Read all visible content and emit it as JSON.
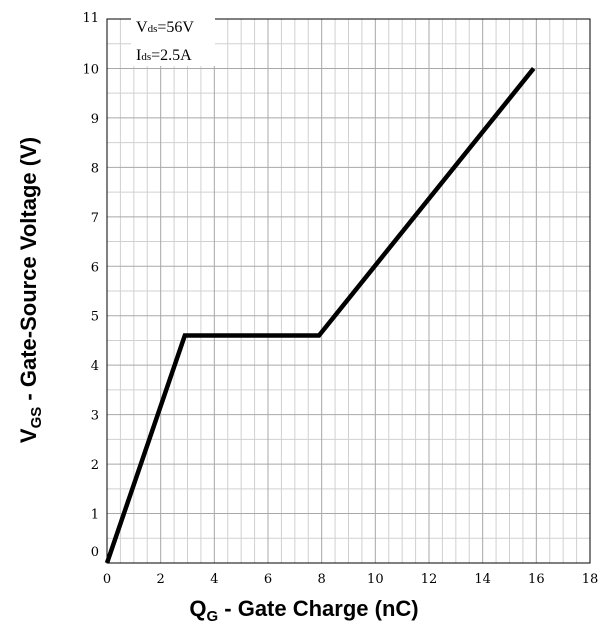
{
  "chart_data": {
    "type": "line",
    "xlabel": {
      "main": "Q",
      "sub": "G",
      "rest": " - Gate Charge (nC)"
    },
    "ylabel": {
      "main": "V",
      "sub": "GS",
      "rest": " - Gate-Source Voltage (V)"
    },
    "xlim": [
      0,
      18
    ],
    "ylim": [
      0,
      11
    ],
    "x_ticks": [
      0,
      2,
      4,
      6,
      8,
      10,
      12,
      14,
      16,
      18
    ],
    "y_ticks": [
      0,
      1,
      2,
      3,
      4,
      5,
      6,
      7,
      8,
      9,
      10,
      11
    ],
    "grid": true,
    "annotations": [
      {
        "main": "V",
        "sub": "ds",
        "rest": "=56V"
      },
      {
        "main": "I",
        "sub": "ds",
        "rest": "=2.5A"
      }
    ],
    "series": [
      {
        "x": [
          0,
          2.9,
          7.9,
          15.9
        ],
        "y": [
          0,
          4.6,
          4.6,
          10
        ],
        "color": "#000000"
      }
    ]
  }
}
